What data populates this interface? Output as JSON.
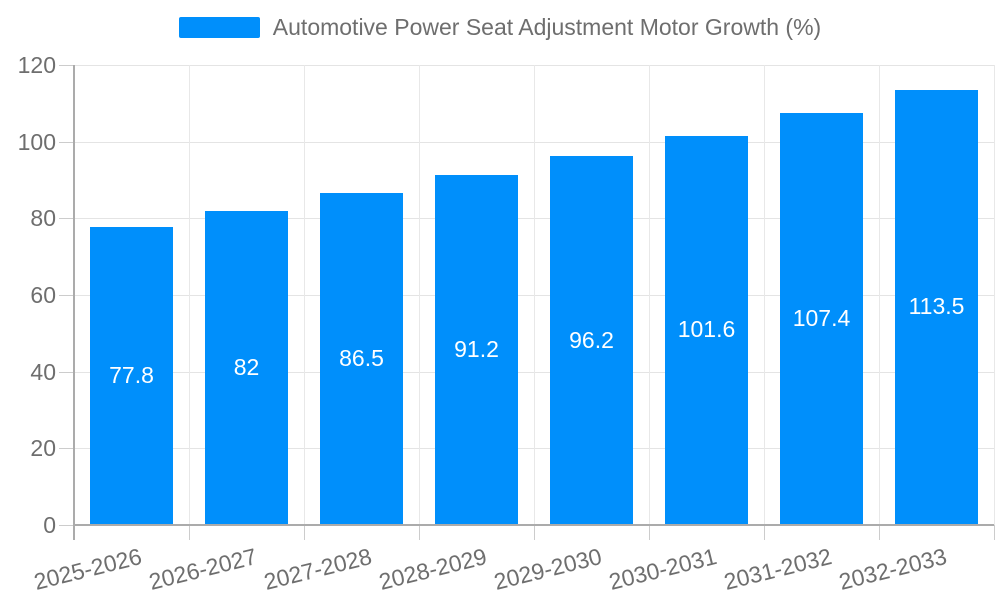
{
  "legend": {
    "label": "Automotive Power Seat Adjustment Motor Growth (%)"
  },
  "colors": {
    "accent": "#008FFB",
    "text": "#6e6e6e",
    "value_label_text": "#ffffff",
    "grid_line": "#e4e4e4",
    "vgrid_line": "#e8e8e8",
    "axis_line": "#ababab",
    "tick_mark": "#cccccc",
    "background": "#ffffff"
  },
  "chart_data": {
    "type": "bar",
    "title": "Automotive Power Seat Adjustment Motor Growth (%)",
    "categories": [
      "2025-2026",
      "2026-2027",
      "2027-2028",
      "2028-2029",
      "2029-2030",
      "2030-2031",
      "2031-2032",
      "2032-2033"
    ],
    "series": [
      {
        "name": "Automotive Power Seat Adjustment Motor Growth (%)",
        "values": [
          77.8,
          82,
          86.5,
          91.2,
          96.2,
          101.6,
          107.4,
          113.5
        ]
      }
    ],
    "data_labels": [
      "77.8",
      "82",
      "86.5",
      "91.2",
      "96.2",
      "101.6",
      "107.4",
      "113.5"
    ],
    "xlabel": "",
    "ylabel": "",
    "ylim": [
      0,
      120
    ],
    "yticks": [
      0,
      20,
      40,
      60,
      80,
      100,
      120
    ],
    "grid": true,
    "legend_position": "top",
    "bar_color": "#008FFB",
    "value_label_position": "middle",
    "x_label_rotation": -14
  }
}
